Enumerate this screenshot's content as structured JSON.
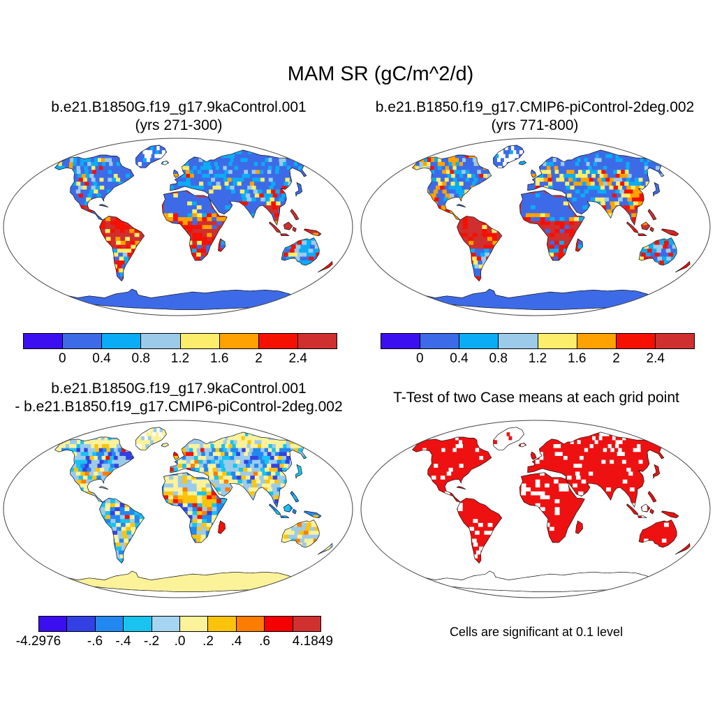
{
  "figure_title": "MAM SR (gC/m^2/d)",
  "panels": {
    "top_left": {
      "title_line1": "b.e21.B1850G.f19_g17.9kaControl.001",
      "title_line2": "(yrs 271-300)",
      "colorbar": {
        "colors": [
          "#3c0ff0",
          "#3d6be8",
          "#0aadf5",
          "#9ccbea",
          "#fcee6a",
          "#ffa200",
          "#f51000",
          "#cf2f2f"
        ],
        "ticks": [
          {
            "label": "0",
            "pos": 0.125
          },
          {
            "label": "0.4",
            "pos": 0.25
          },
          {
            "label": "0.8",
            "pos": 0.375
          },
          {
            "label": "1.2",
            "pos": 0.5
          },
          {
            "label": "1.6",
            "pos": 0.625
          },
          {
            "label": "2",
            "pos": 0.75
          },
          {
            "label": "2.4",
            "pos": 0.875
          }
        ]
      }
    },
    "top_right": {
      "title_line1": "b.e21.B1850.f19_g17.CMIP6-piControl-2deg.002",
      "title_line2": "(yrs 771-800)",
      "colorbar": {
        "colors": [
          "#3c0ff0",
          "#3d6be8",
          "#0aadf5",
          "#9ccbea",
          "#fcee6a",
          "#ffa200",
          "#f51000",
          "#cf2f2f"
        ],
        "ticks": [
          {
            "label": "0",
            "pos": 0.125
          },
          {
            "label": "0.4",
            "pos": 0.25
          },
          {
            "label": "0.8",
            "pos": 0.375
          },
          {
            "label": "1.2",
            "pos": 0.5
          },
          {
            "label": "1.6",
            "pos": 0.625
          },
          {
            "label": "2",
            "pos": 0.75
          },
          {
            "label": "2.4",
            "pos": 0.875
          }
        ]
      }
    },
    "bottom_left": {
      "title_line1": "b.e21.B1850G.f19_g17.9kaControl.001",
      "title_line2": "- b.e21.B1850.f19_g17.CMIP6-piControl-2deg.002",
      "colorbar": {
        "colors": [
          "#3c0ff0",
          "#3341e4",
          "#2288f0",
          "#18c3f0",
          "#a5d5f0",
          "#fbf29a",
          "#fcc30d",
          "#fe7d00",
          "#f50000",
          "#d03030"
        ],
        "ticks": [
          {
            "label": "-4.2976",
            "pos": 0.0
          },
          {
            "label": "-.6",
            "pos": 0.2
          },
          {
            "label": "-.4",
            "pos": 0.3
          },
          {
            "label": "-.2",
            "pos": 0.4
          },
          {
            "label": ".0",
            "pos": 0.5
          },
          {
            "label": ".2",
            "pos": 0.6
          },
          {
            "label": ".4",
            "pos": 0.7
          },
          {
            "label": ".6",
            "pos": 0.8
          },
          {
            "label": "4.1849",
            "pos": 0.97
          }
        ]
      }
    },
    "bottom_right": {
      "title": "T-Test of two Case means at each grid point",
      "caption": "Cells are significant at 0.1 level",
      "significant_color": "#ee1111"
    }
  },
  "map_colors": {
    "royal": "#3d6be8",
    "cyan": "#0aadf5",
    "lblue": "#9ccbea",
    "yellow": "#fcee6a",
    "orange": "#ffa200",
    "red": "#f51000",
    "brick": "#cf2f2f",
    "violet": "#3341e4",
    "dodger": "#2288f0",
    "cyan2": "#18c3f0",
    "pyellow": "#fbf29a",
    "gold": "#fcc30d",
    "orange2": "#fe7d00",
    "tred": "#ee1111",
    "white": "#ffffff",
    "coast": "#111111",
    "ellipse": "#444444"
  },
  "chart_data": [
    {
      "type": "heatmap",
      "panel": "top_left",
      "title": "b.e21.B1850G.f19_g17.9kaControl.001",
      "subtitle": "(yrs 271-300)",
      "variable": "MAM SR (gC/m^2/d)",
      "projection": "robinson world map, white ocean, pixelated 2-deg model grid over land",
      "levels": [
        0,
        0.4,
        0.8,
        1.2,
        1.6,
        2,
        2.4
      ],
      "palette": [
        "#3c0ff0",
        "#3d6be8",
        "#0aadf5",
        "#9ccbea",
        "#fcee6a",
        "#ffa200",
        "#f51000",
        "#cf2f2f"
      ],
      "pattern_summary": "High-latitude land, Sahara, Arabia and Antarctica blue (<0.4); cyan patches in W Canada, Siberia, Tibet, S South America, Australia; yellow/orange spots in NW Canada, UK, Mediterranean, central Asia; red >2.4 over Amazon, Congo, Sahel edge, SE Asia/Indonesia, Madagascar, E Asia, New Zealand"
    },
    {
      "type": "heatmap",
      "panel": "top_right",
      "title": "b.e21.B1850.f19_g17.CMIP6-piControl-2deg.002",
      "subtitle": "(yrs 771-800)",
      "variable": "MAM SR (gC/m^2/d)",
      "projection": "robinson world map, white ocean, pixelated 2-deg model grid over land",
      "levels": [
        0,
        0.4,
        0.8,
        1.2,
        1.6,
        2,
        2.4
      ],
      "palette": [
        "#3c0ff0",
        "#3d6be8",
        "#0aadf5",
        "#9ccbea",
        "#fcee6a",
        "#ffa200",
        "#f51000",
        "#cf2f2f"
      ],
      "pattern_summary": "Similar to 9ka panel but with pronounced yellow-orange belt across the Eurasian steppe (45-60N) and central/western North America; tropics red over Amazon, Congo, SE Asia"
    },
    {
      "type": "heatmap",
      "panel": "bottom_left",
      "title": "b.e21.B1850G.f19_g17.9kaControl.001 - b.e21.B1850.f19_g17.CMIP6-piControl-2deg.002",
      "variable": "difference of MAM SR (gC/m^2/d)",
      "data_min": -4.2976,
      "data_max": 4.1849,
      "levels_labeled": [
        -0.6,
        -0.4,
        -0.2,
        0.0,
        0.2,
        0.4,
        0.6
      ],
      "palette": [
        "#3c0ff0",
        "#3341e4",
        "#2288f0",
        "#18c3f0",
        "#a5d5f0",
        "#fbf29a",
        "#fcc30d",
        "#fe7d00",
        "#f50000",
        "#d03030"
      ],
      "pattern_summary": "Negative (blue) band across mid-latitude North America and Siberia and through tropical forests; near-zero/pale-yellow over Arctic, deserts, Australia and Antarctica; positive (gold/orange/red) over Sahel, UK, Madagascar, west India coast"
    },
    {
      "type": "map",
      "panel": "bottom_right",
      "title": "T-Test of two Case means at each grid point",
      "caption": "Cells are significant at 0.1 level",
      "significant_color": "#ee1111",
      "pattern_summary": "Red cells mark statistically significant grid points covering most land; white gaps over Greenland, high Arctic, parts of Sahara/Arabia, central US and Antarctica (outline only)"
    }
  ]
}
